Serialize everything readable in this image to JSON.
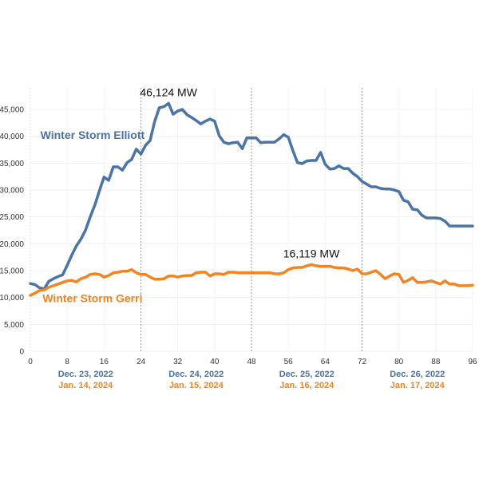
{
  "chart_data": {
    "type": "line",
    "title": "",
    "xlabel": "",
    "ylabel": "",
    "xlim": [
      0,
      96
    ],
    "ylim": [
      0,
      47000
    ],
    "grid": true,
    "x_ticks": [
      0,
      8,
      16,
      24,
      32,
      40,
      48,
      56,
      64,
      72,
      80,
      88,
      96
    ],
    "x_tick_labels": [
      "0",
      "8",
      "16",
      "24",
      "32",
      "40",
      "48",
      "56",
      "64",
      "72",
      "80",
      "88",
      "96"
    ],
    "y_ticks": [
      0,
      5000,
      10000,
      15000,
      20000,
      25000,
      30000,
      35000,
      40000,
      45000
    ],
    "y_tick_labels": [
      "0",
      "5,000",
      "10,000",
      "15,000",
      "20,000",
      "25,000",
      "30,000",
      "35,000",
      "40,000",
      "45,000"
    ],
    "day_dividers": [
      24,
      48,
      72
    ],
    "date_labels": [
      {
        "center_hour": 12,
        "elliott": "Dec. 23, 2022",
        "gerri": "Jan. 14, 2024"
      },
      {
        "center_hour": 36,
        "elliott": "Dec. 24, 2022",
        "gerri": "Jan. 15, 2024"
      },
      {
        "center_hour": 60,
        "elliott": "Dec. 25, 2022",
        "gerri": "Jan. 16, 2024"
      },
      {
        "center_hour": 84,
        "elliott": "Dec. 26, 2022",
        "gerri": "Jan. 17, 2024"
      }
    ],
    "series": [
      {
        "name": "Winter Storm Elliott",
        "color": "#4a73a6",
        "label_anchor": {
          "hour": 13.5,
          "value": 39500
        },
        "peak_label": "46,124 MW",
        "peak": {
          "hour": 30,
          "value": 46124
        },
        "values": [
          12600,
          12400,
          11800,
          11600,
          13000,
          13500,
          13900,
          14200,
          16000,
          17900,
          19600,
          20900,
          22600,
          25000,
          27200,
          29900,
          32400,
          31800,
          34300,
          34300,
          33700,
          35100,
          35700,
          37600,
          36700,
          38300,
          39200,
          42800,
          45300,
          45500,
          46124,
          44100,
          44700,
          45000,
          44000,
          43500,
          42900,
          42300,
          42800,
          43200,
          42800,
          40100,
          38900,
          38600,
          38800,
          38900,
          37700,
          39700,
          39700,
          39700,
          38800,
          38900,
          38900,
          38900,
          39500,
          40300,
          39800,
          37300,
          35100,
          34900,
          35400,
          35500,
          35500,
          37000,
          34800,
          33900,
          34000,
          34500,
          34000,
          34000,
          33100,
          32500,
          31600,
          31100,
          30600,
          30600,
          30300,
          30200,
          30200,
          30000,
          29700,
          28100,
          27800,
          26400,
          26300,
          25300,
          24800,
          24800,
          24800,
          24700,
          24200,
          23300,
          23300,
          23300,
          23300,
          23300,
          23300
        ]
      },
      {
        "name": "Winter Storm Gerri",
        "color": "#f28522",
        "label_anchor": {
          "hour": 13.5,
          "value": 9100
        },
        "peak_label": "16,119 MW",
        "peak": {
          "hour": 61,
          "value": 16119
        },
        "values": [
          10400,
          10800,
          11300,
          11400,
          11900,
          12200,
          12500,
          12800,
          13100,
          13200,
          12900,
          13500,
          13800,
          14300,
          14400,
          14300,
          13800,
          14100,
          14600,
          14700,
          14900,
          14900,
          15200,
          14600,
          14300,
          14300,
          13800,
          13400,
          13400,
          13500,
          14000,
          14000,
          13800,
          14000,
          14100,
          14100,
          14600,
          14700,
          14700,
          14000,
          14400,
          14400,
          14300,
          14700,
          14700,
          14600,
          14600,
          14600,
          14600,
          14600,
          14600,
          14600,
          14600,
          14400,
          14400,
          14600,
          15200,
          15500,
          15600,
          15600,
          15900,
          16119,
          15900,
          15800,
          15800,
          15800,
          15600,
          15500,
          15500,
          15300,
          15000,
          15300,
          14400,
          14400,
          14700,
          15000,
          14300,
          13500,
          14000,
          14400,
          14300,
          12800,
          13200,
          13700,
          12800,
          12800,
          12900,
          13100,
          12800,
          12500,
          13100,
          12500,
          12500,
          12200,
          12200,
          12200,
          12300
        ]
      }
    ]
  }
}
